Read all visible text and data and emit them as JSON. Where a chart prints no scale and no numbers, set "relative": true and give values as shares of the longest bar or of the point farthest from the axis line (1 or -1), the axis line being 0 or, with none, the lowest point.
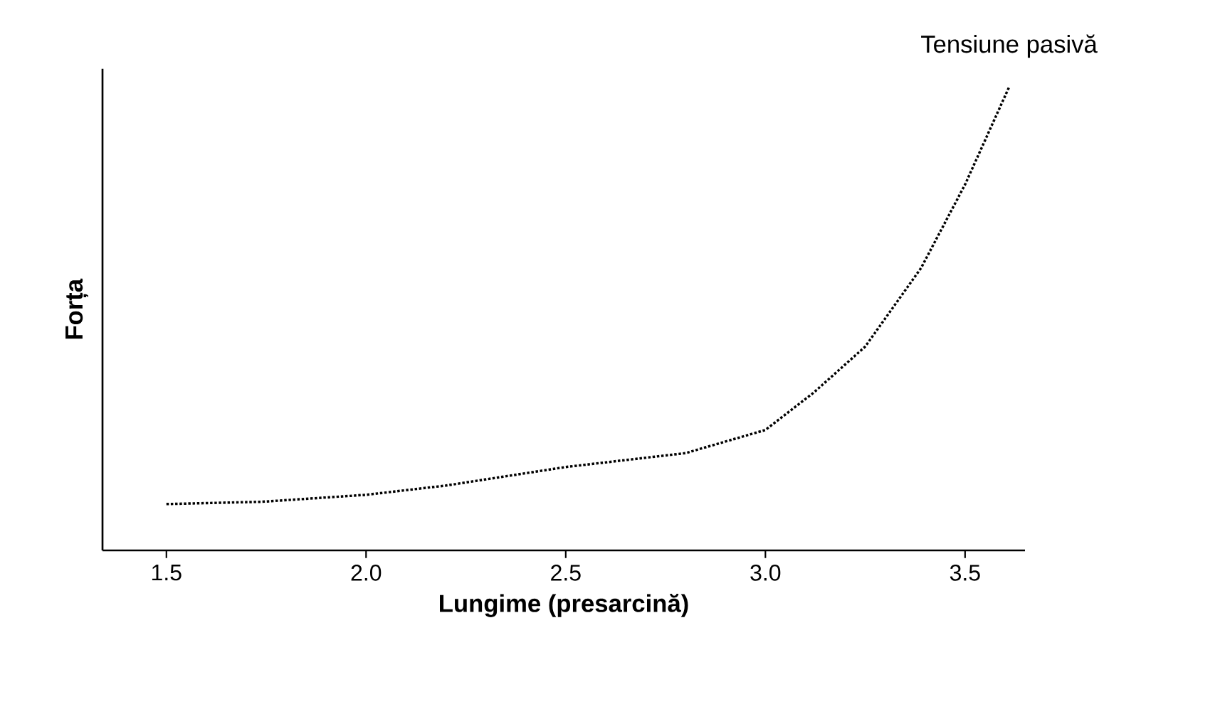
{
  "chart_data": {
    "type": "line",
    "relative": true,
    "xlabel": "Lungime (presarcină)",
    "ylabel": "Forța",
    "x": [
      1.5,
      1.74,
      2.0,
      2.2,
      2.5,
      2.8,
      3.0,
      3.12,
      3.25,
      3.39,
      3.5,
      3.61
    ],
    "series": [
      {
        "color": "#000000",
        "values": [
          0.1,
          0.105,
          0.12,
          0.14,
          0.18,
          0.21,
          0.26,
          0.34,
          0.44,
          0.61,
          0.79,
          1.0
        ]
      }
    ],
    "xlim": [
      1.34,
      3.65
    ],
    "xticks": [
      1.5,
      {
        "value": 2,
        "label": "2.0"
      },
      2.5,
      {
        "value": 3,
        "label": "3.0"
      },
      3.5
    ],
    "annotations": [
      {
        "text": "Tensiune pasivă",
        "x": 3.61,
        "y": 1.0
      }
    ],
    "line_style": "dotted",
    "marker": "none",
    "grid": false
  }
}
